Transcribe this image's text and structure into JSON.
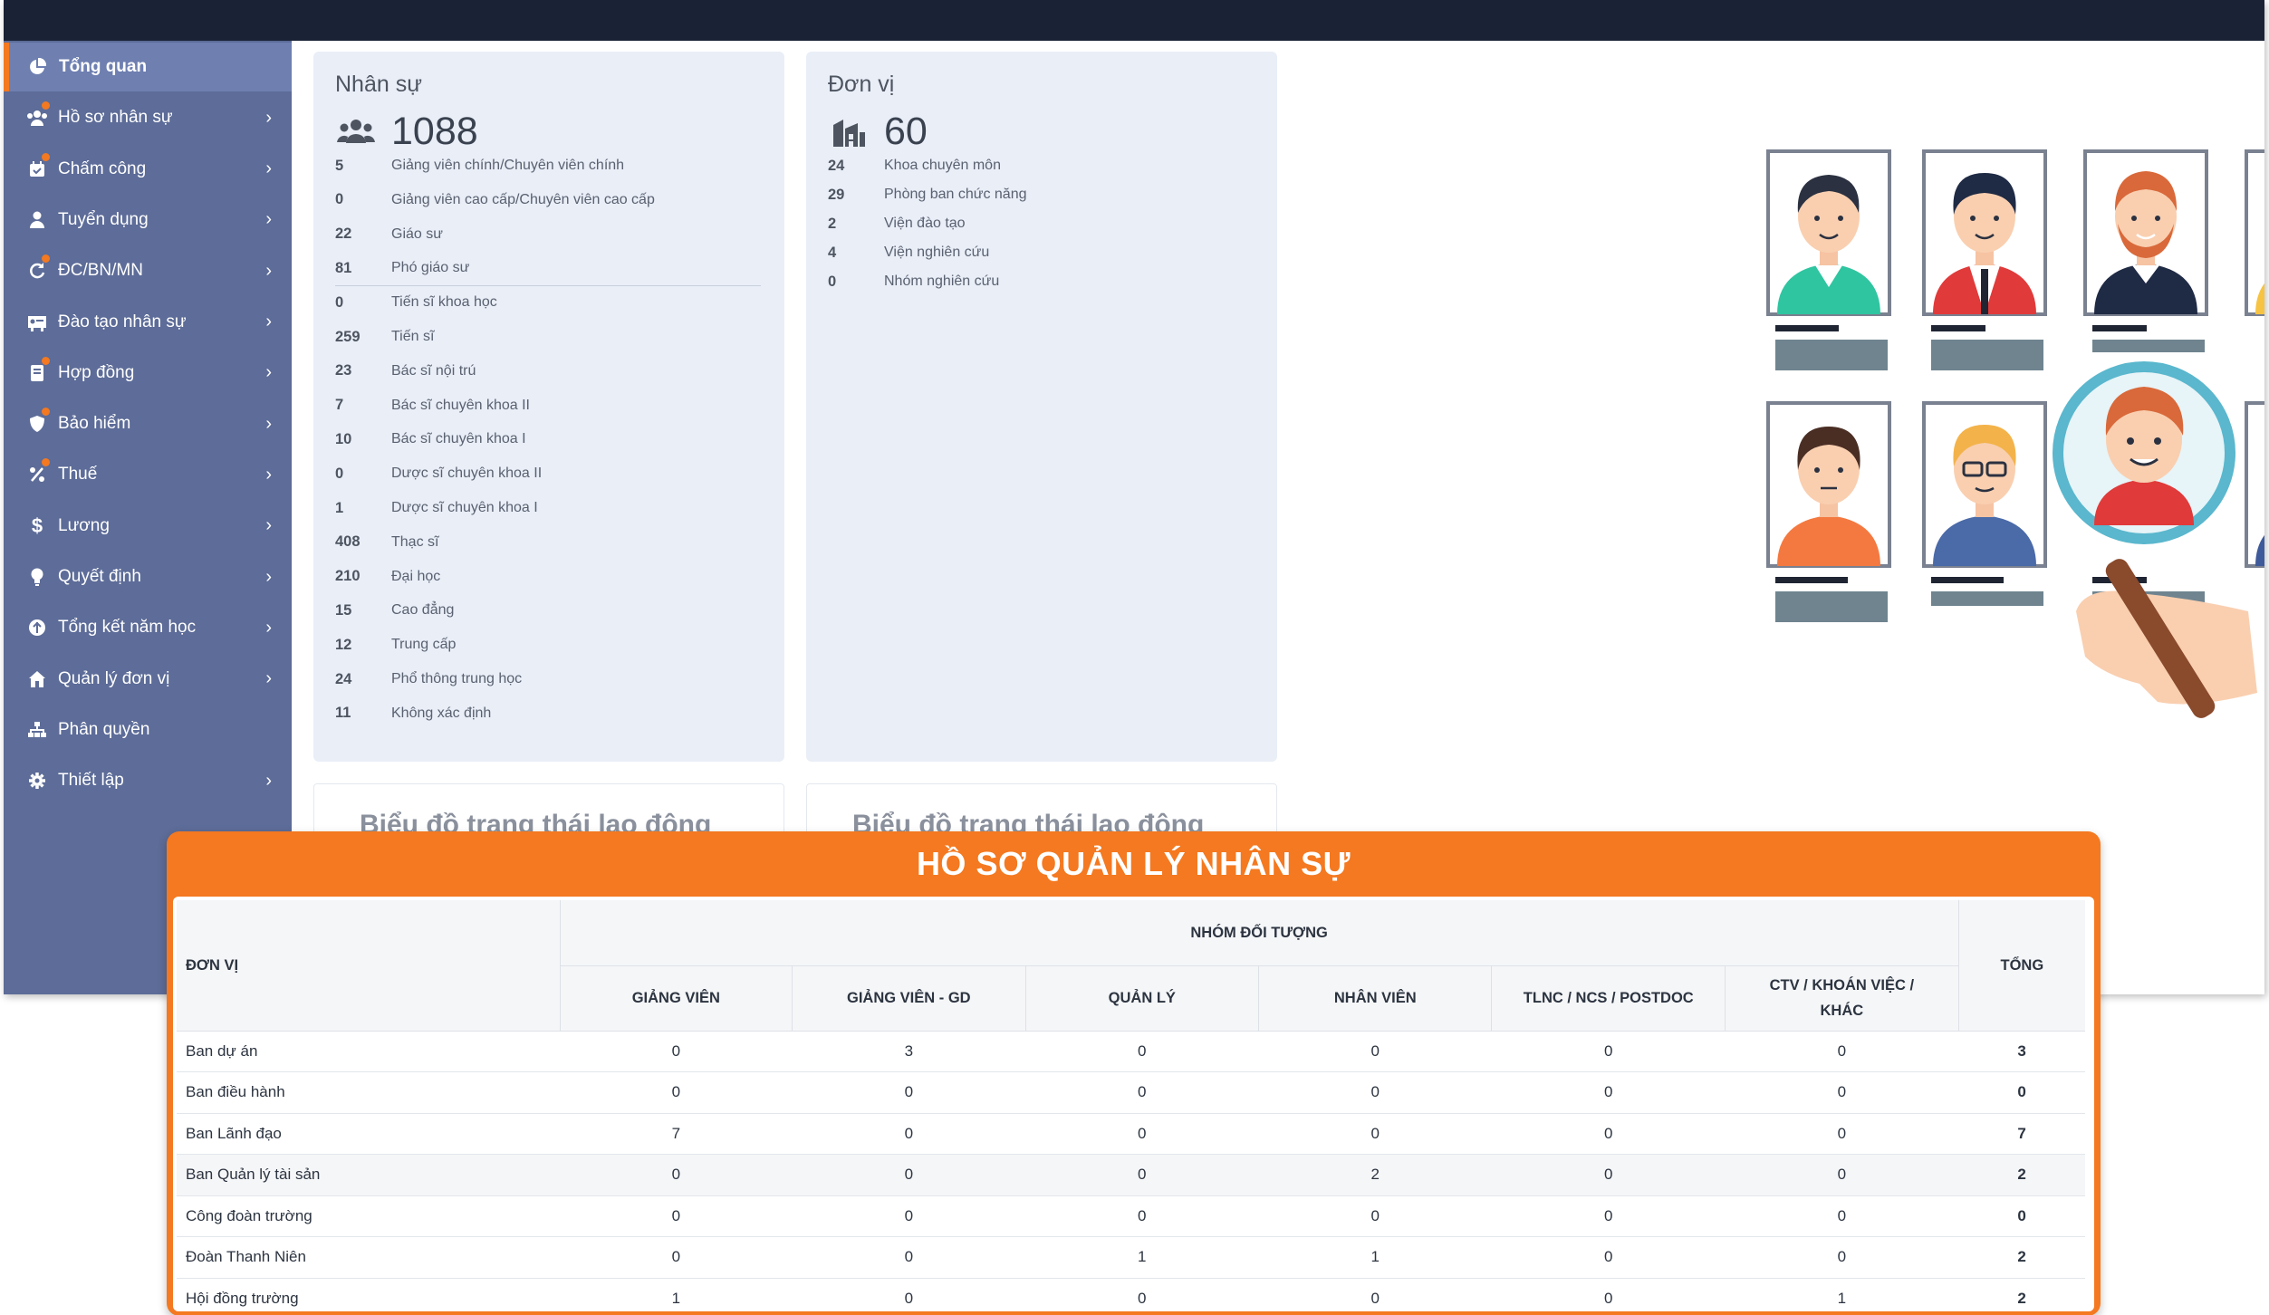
{
  "sidebar": {
    "items": [
      {
        "label": "Tổng quan",
        "icon": "pie-chart-icon",
        "active": true,
        "chevron": false,
        "dot": false
      },
      {
        "label": "Hồ sơ nhân sự",
        "icon": "users-icon",
        "chevron": true,
        "dot": true
      },
      {
        "label": "Chấm công",
        "icon": "calendar-check-icon",
        "chevron": true,
        "dot": true
      },
      {
        "label": "Tuyển dụng",
        "icon": "user-icon",
        "chevron": true,
        "dot": false
      },
      {
        "label": "ĐC/BN/MN",
        "icon": "refresh-icon",
        "chevron": true,
        "dot": true
      },
      {
        "label": "Đào tạo nhân sự",
        "icon": "training-icon",
        "chevron": true,
        "dot": false
      },
      {
        "label": "Hợp đồng",
        "icon": "contract-icon",
        "chevron": true,
        "dot": true
      },
      {
        "label": "Bảo hiểm",
        "icon": "shield-icon",
        "chevron": true,
        "dot": true
      },
      {
        "label": "Thuế",
        "icon": "percent-icon",
        "chevron": true,
        "dot": true
      },
      {
        "label": "Lương",
        "icon": "dollar-icon",
        "chevron": true,
        "dot": false
      },
      {
        "label": "Quyết định",
        "icon": "lightbulb-icon",
        "chevron": true,
        "dot": false
      },
      {
        "label": "Tổng kết năm học",
        "icon": "badge-icon",
        "chevron": true,
        "dot": false
      },
      {
        "label": "Quản lý đơn vị",
        "icon": "home-icon",
        "chevron": true,
        "dot": false
      },
      {
        "label": "Phân quyền",
        "icon": "sitemap-icon",
        "chevron": false,
        "dot": false
      },
      {
        "label": "Thiết lập",
        "icon": "gear-icon",
        "chevron": true,
        "dot": false
      }
    ]
  },
  "staff_card": {
    "title": "Nhân sự",
    "total": "1088",
    "rows": [
      {
        "value": "5",
        "label": "Giảng viên chính/Chuyên viên chính"
      },
      {
        "value": "0",
        "label": "Giảng viên cao cấp/Chuyên viên cao cấp"
      },
      {
        "value": "22",
        "label": "Giáo sư"
      },
      {
        "value": "81",
        "label": "Phó giáo sư"
      },
      {
        "value": "0",
        "label": "Tiến sĩ khoa học"
      },
      {
        "value": "259",
        "label": "Tiến sĩ"
      },
      {
        "value": "23",
        "label": "Bác sĩ nội trú"
      },
      {
        "value": "7",
        "label": "Bác sĩ chuyên khoa II"
      },
      {
        "value": "10",
        "label": "Bác sĩ chuyên khoa I"
      },
      {
        "value": "0",
        "label": "Dược sĩ chuyên khoa II"
      },
      {
        "value": "1",
        "label": "Dược sĩ chuyên khoa I"
      },
      {
        "value": "408",
        "label": "Thạc sĩ"
      },
      {
        "value": "210",
        "label": "Đại học"
      },
      {
        "value": "15",
        "label": "Cao đẳng"
      },
      {
        "value": "12",
        "label": "Trung cấp"
      },
      {
        "value": "24",
        "label": "Phổ thông trung học"
      },
      {
        "value": "11",
        "label": "Không xác định"
      }
    ]
  },
  "unit_card": {
    "title": "Đơn vị",
    "total": "60",
    "rows": [
      {
        "value": "24",
        "label": "Khoa chuyên môn"
      },
      {
        "value": "29",
        "label": "Phòng ban chức năng"
      },
      {
        "value": "2",
        "label": "Viện đào tạo"
      },
      {
        "value": "4",
        "label": "Viện nghiên cứu"
      },
      {
        "value": "0",
        "label": "Nhóm nghiên cứu"
      }
    ]
  },
  "charts": {
    "left_title": "Biểu đồ trạng thái lao động",
    "right_title": "Biểu đồ trạng thái lao động"
  },
  "panel": {
    "title": "HỒ SƠ QUẢN LÝ NHÂN SỰ",
    "header_unit": "ĐƠN VỊ",
    "header_group": "NHÓM ĐỐI TƯỢNG",
    "header_total": "TỔNG",
    "columns": [
      "GIẢNG VIÊN",
      "GIẢNG VIÊN - GD",
      "QUẢN LÝ",
      "NHÂN VIÊN",
      "TLNC / NCS / POSTDOC",
      "CTV / KHOÁN VIỆC / KHÁC"
    ],
    "rows": [
      {
        "name": "Ban dự án",
        "values": [
          "0",
          "3",
          "0",
          "0",
          "0",
          "0"
        ],
        "total": "3"
      },
      {
        "name": "Ban điều hành",
        "values": [
          "0",
          "0",
          "0",
          "0",
          "0",
          "0"
        ],
        "total": "0"
      },
      {
        "name": "Ban Lãnh đạo",
        "values": [
          "7",
          "0",
          "0",
          "0",
          "0",
          "0"
        ],
        "total": "7"
      },
      {
        "name": "Ban Quản lý tài sản",
        "values": [
          "0",
          "0",
          "0",
          "2",
          "0",
          "0"
        ],
        "total": "2"
      },
      {
        "name": "Công đoàn trường",
        "values": [
          "0",
          "0",
          "0",
          "0",
          "0",
          "0"
        ],
        "total": "0"
      },
      {
        "name": "Đoàn Thanh Niên",
        "values": [
          "0",
          "0",
          "1",
          "1",
          "0",
          "0"
        ],
        "total": "2"
      },
      {
        "name": "Hội đồng trường",
        "values": [
          "1",
          "0",
          "0",
          "0",
          "0",
          "1"
        ],
        "total": "2"
      }
    ]
  },
  "colors": {
    "topbar": "#1a2236",
    "sidebar": "#5d6c98",
    "accent": "#f47920",
    "card": "#e9eef7"
  }
}
